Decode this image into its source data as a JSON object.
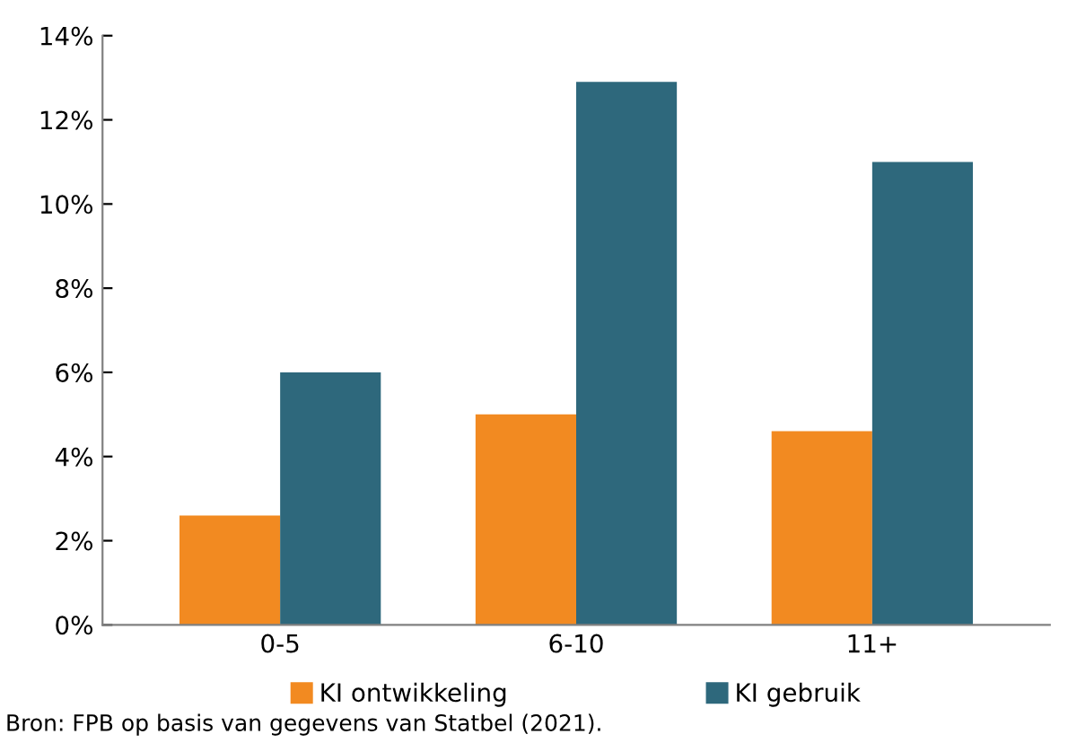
{
  "chart_data": {
    "type": "bar",
    "categories": [
      "0-5",
      "6-10",
      "11+"
    ],
    "series": [
      {
        "name": "KI ontwikkeling",
        "color": "#f28a21",
        "values": [
          2.6,
          5.0,
          4.6
        ]
      },
      {
        "name": "KI gebruik",
        "color": "#2e687c",
        "values": [
          6.0,
          12.9,
          11.0
        ]
      }
    ],
    "ylim": [
      0,
      14
    ],
    "yticks": [
      {
        "value": 0,
        "label": "0%"
      },
      {
        "value": 2,
        "label": "2%"
      },
      {
        "value": 4,
        "label": "4%"
      },
      {
        "value": 6,
        "label": "6%"
      },
      {
        "value": 8,
        "label": "8%"
      },
      {
        "value": 10,
        "label": "10%"
      },
      {
        "value": 12,
        "label": "12%"
      },
      {
        "value": 14,
        "label": "14%"
      }
    ],
    "grid": false,
    "legend": "bottom",
    "annotations": [
      "Bron: FPB op basis van gegevens van Statbel (2021)."
    ]
  }
}
